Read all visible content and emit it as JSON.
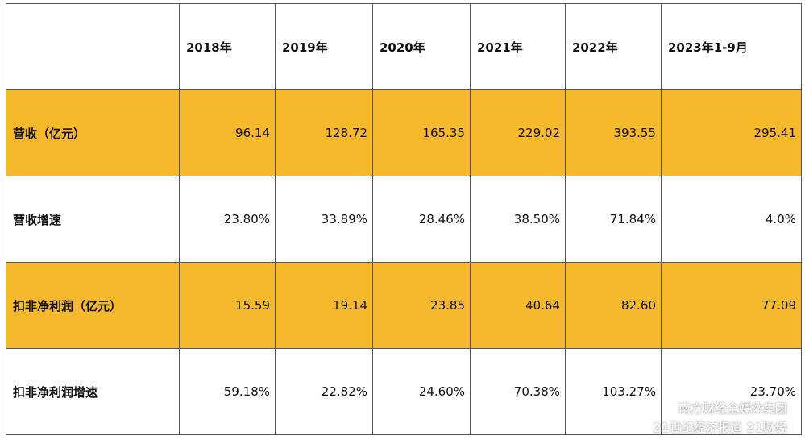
{
  "table": {
    "columns": [
      "2018年",
      "2019年",
      "2020年",
      "2021年",
      "2022年",
      "2023年1-9月"
    ],
    "rows": [
      {
        "label": "营收（亿元）",
        "highlight": true,
        "values": [
          "96.14",
          "128.72",
          "165.35",
          "229.02",
          "393.55",
          "295.41"
        ]
      },
      {
        "label": "营收增速",
        "highlight": false,
        "values": [
          "23.80%",
          "33.89%",
          "28.46%",
          "38.50%",
          "71.84%",
          "4.0%"
        ]
      },
      {
        "label": "扣非净利润（亿元）",
        "highlight": true,
        "values": [
          "15.59",
          "19.14",
          "23.85",
          "40.64",
          "82.60",
          "77.09"
        ]
      },
      {
        "label": "扣非净利润增速",
        "highlight": false,
        "values": [
          "59.18%",
          "22.82%",
          "24.60%",
          "70.38%",
          "103.27%",
          "23.70%"
        ]
      }
    ],
    "highlight_color": "#f7b92c"
  },
  "watermark": {
    "group": "南方财经全媒体集团",
    "paper": "21世纪经济报道",
    "brand": "21财经"
  }
}
